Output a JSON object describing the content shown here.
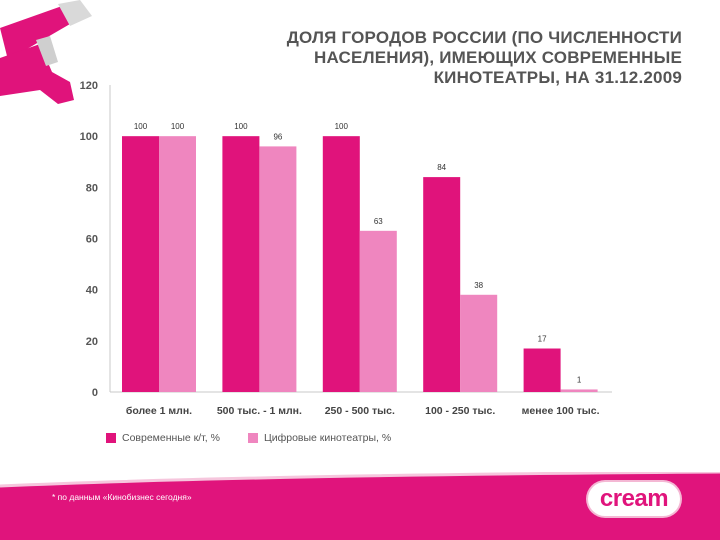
{
  "title_lines": [
    "ДОЛЯ ГОРОДОВ РОССИИ (ПО ЧИСЛЕННОСТИ",
    "НАСЕЛЕНИЯ), ИМЕЮЩИХ СОВРЕМЕННЫЕ",
    "КИНОТЕАТРЫ, НА 31.12.2009"
  ],
  "footnote": "* по данным «Кинобизнес сегодня»",
  "logo_text": "cream",
  "colors": {
    "series1": "#e0137b",
    "series2": "#ef86bf",
    "axis_text": "#555555",
    "band": "#e0147c"
  },
  "chart_data": {
    "type": "bar",
    "categories": [
      "более 1 млн.",
      "500 тыс. - 1 млн.",
      "250 - 500 тыс.",
      "100 - 250 тыс.",
      "менее 100 тыс."
    ],
    "series": [
      {
        "name": "Современные к/т, %",
        "values": [
          100,
          100,
          100,
          84,
          17
        ]
      },
      {
        "name": "Цифровые кинотеатры, %",
        "values": [
          100,
          96,
          63,
          38,
          1
        ]
      }
    ],
    "ylim": [
      0,
      120
    ],
    "yticks": [
      0,
      20,
      40,
      60,
      80,
      100,
      120
    ],
    "legend_position": "bottom-left",
    "grid": false
  }
}
